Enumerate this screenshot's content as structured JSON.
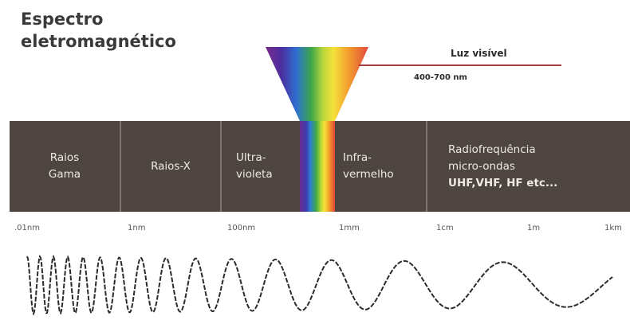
{
  "title": {
    "line1": "Espectro",
    "line2": "eletromagnético"
  },
  "visible_light": {
    "label": "Luz visível",
    "range": "400-700 nm"
  },
  "bands": [
    {
      "id": "gamma",
      "lines": [
        "Raios",
        "Gama"
      ]
    },
    {
      "id": "xray",
      "lines": [
        "Raios-X"
      ]
    },
    {
      "id": "ultraviolet",
      "lines": [
        "Ultra-",
        "violeta"
      ]
    },
    {
      "id": "infrared",
      "lines": [
        "Infra-",
        "vermelho"
      ]
    },
    {
      "id": "radio",
      "lines": [
        "Radiofrequência",
        "micro-ondas",
        "UHF,VHF, HF etc..."
      ]
    }
  ],
  "scale": [
    ".01nm",
    "1nm",
    "100nm",
    "1mm",
    "1cm",
    "1m",
    "1km"
  ],
  "colors": {
    "band_background": "#4e4440",
    "band_text": "#efe9e3",
    "wave": "#2b2b2b",
    "pointer_line": "#a04040"
  }
}
